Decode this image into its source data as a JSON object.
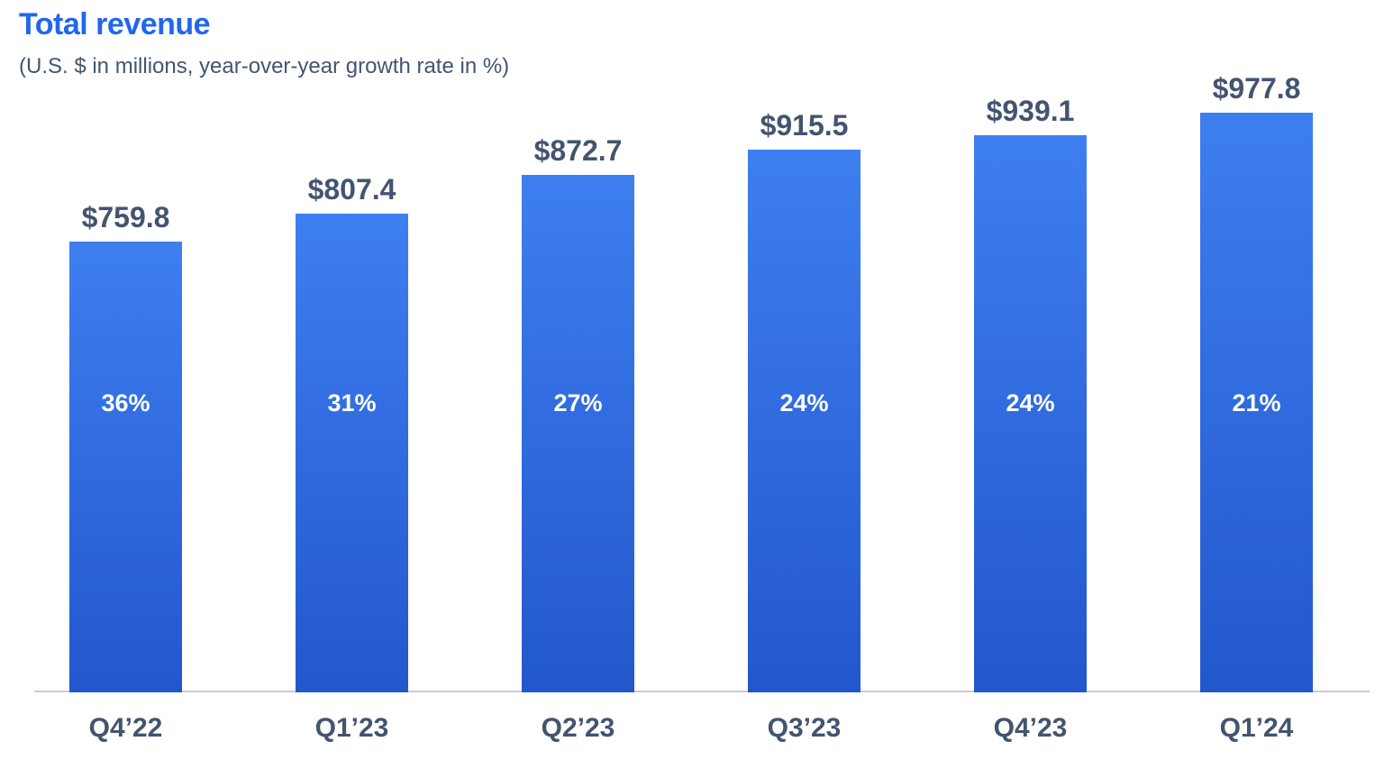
{
  "title": "Total revenue",
  "subtitle": "(U.S. $ in millions, year-over-year growth rate in %)",
  "colors": {
    "title": "#2166F0",
    "text": "#44546F",
    "bar_top": "#3E7FF0",
    "bar_bottom": "#2257CD",
    "baseline": "#C7CBD2",
    "growth": "#FFFFFF"
  },
  "chart_data": {
    "type": "bar",
    "title": "Total revenue",
    "subtitle": "(U.S. $ in millions, year-over-year growth rate in %)",
    "categories": [
      "Q4’22",
      "Q1’23",
      "Q2’23",
      "Q3’23",
      "Q4’23",
      "Q1’24"
    ],
    "values": [
      759.8,
      807.4,
      872.7,
      915.5,
      939.1,
      977.8
    ],
    "value_labels": [
      "$759.8",
      "$807.4",
      "$872.7",
      "$915.5",
      "$939.1",
      "$977.8"
    ],
    "growth_rates_pct": [
      36,
      31,
      27,
      24,
      24,
      21
    ],
    "growth_labels": [
      "36%",
      "31%",
      "27%",
      "24%",
      "24%",
      "21%"
    ],
    "xlabel": "",
    "ylabel": "U.S. $ in millions",
    "ylim": [
      0,
      1170
    ],
    "grid": false,
    "legend": "none",
    "bar_fill": "vertical gradient #3E7FF0 to #2257CD",
    "value_label_position": "above bar",
    "growth_label_position": "inside bar, fixed height above baseline"
  }
}
